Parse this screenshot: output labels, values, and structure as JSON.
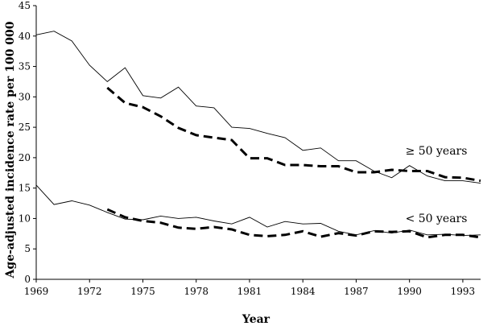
{
  "chart_data": {
    "type": "line",
    "title": "",
    "xlabel": "Year",
    "ylabel": "Age-adjusted incidence rate per 100 000",
    "xlim": [
      1969,
      1994
    ],
    "ylim": [
      0,
      45
    ],
    "x_ticks": [
      1969,
      1972,
      1975,
      1978,
      1981,
      1984,
      1987,
      1990,
      1993
    ],
    "y_ticks": [
      0,
      5,
      10,
      15,
      20,
      25,
      30,
      35,
      40,
      45
    ],
    "grid": false,
    "legend": "none",
    "annotations": [
      {
        "text": "≥ 50 years",
        "group": "older"
      },
      {
        "text": "< 50 years",
        "group": "younger"
      }
    ],
    "series": [
      {
        "group": "older",
        "style": "solid",
        "points": [
          [
            1969,
            40.2
          ],
          [
            1970,
            40.8
          ],
          [
            1971,
            39.2
          ],
          [
            1972,
            35.2
          ],
          [
            1973,
            32.5
          ],
          [
            1974,
            34.8
          ],
          [
            1975,
            30.2
          ],
          [
            1976,
            29.8
          ],
          [
            1977,
            31.6
          ],
          [
            1978,
            28.5
          ],
          [
            1979,
            28.2
          ],
          [
            1980,
            25.0
          ],
          [
            1981,
            24.8
          ],
          [
            1982,
            24.0
          ],
          [
            1983,
            23.3
          ],
          [
            1984,
            21.2
          ],
          [
            1985,
            21.6
          ],
          [
            1986,
            19.5
          ],
          [
            1987,
            19.5
          ],
          [
            1988,
            17.8
          ],
          [
            1989,
            16.7
          ],
          [
            1990,
            18.7
          ],
          [
            1991,
            17.0
          ],
          [
            1992,
            16.2
          ],
          [
            1993,
            16.2
          ],
          [
            1994,
            15.8
          ]
        ]
      },
      {
        "group": "older",
        "style": "dashed",
        "points": [
          [
            1973,
            31.5
          ],
          [
            1974,
            29.0
          ],
          [
            1975,
            28.3
          ],
          [
            1976,
            26.8
          ],
          [
            1977,
            24.9
          ],
          [
            1978,
            23.7
          ],
          [
            1979,
            23.3
          ],
          [
            1980,
            22.9
          ],
          [
            1981,
            19.9
          ],
          [
            1982,
            19.9
          ],
          [
            1983,
            18.8
          ],
          [
            1984,
            18.8
          ],
          [
            1985,
            18.6
          ],
          [
            1986,
            18.6
          ],
          [
            1987,
            17.6
          ],
          [
            1988,
            17.6
          ],
          [
            1989,
            18.0
          ],
          [
            1990,
            17.8
          ],
          [
            1991,
            17.8
          ],
          [
            1992,
            16.8
          ],
          [
            1993,
            16.7
          ],
          [
            1994,
            16.2
          ]
        ]
      },
      {
        "group": "younger",
        "style": "solid",
        "points": [
          [
            1969,
            15.5
          ],
          [
            1970,
            12.3
          ],
          [
            1971,
            12.9
          ],
          [
            1972,
            12.2
          ],
          [
            1973,
            11.0
          ],
          [
            1974,
            9.9
          ],
          [
            1975,
            9.8
          ],
          [
            1976,
            10.4
          ],
          [
            1977,
            10.0
          ],
          [
            1978,
            10.2
          ],
          [
            1979,
            9.6
          ],
          [
            1980,
            9.1
          ],
          [
            1981,
            10.2
          ],
          [
            1982,
            8.6
          ],
          [
            1983,
            9.5
          ],
          [
            1984,
            9.1
          ],
          [
            1985,
            9.2
          ],
          [
            1986,
            7.9
          ],
          [
            1987,
            7.3
          ],
          [
            1988,
            8.0
          ],
          [
            1989,
            7.6
          ],
          [
            1990,
            8.1
          ],
          [
            1991,
            7.3
          ],
          [
            1992,
            7.4
          ],
          [
            1993,
            7.2
          ],
          [
            1994,
            7.3
          ]
        ]
      },
      {
        "group": "younger",
        "style": "dashed",
        "points": [
          [
            1973,
            11.5
          ],
          [
            1974,
            10.2
          ],
          [
            1975,
            9.6
          ],
          [
            1976,
            9.3
          ],
          [
            1977,
            8.5
          ],
          [
            1978,
            8.3
          ],
          [
            1979,
            8.6
          ],
          [
            1980,
            8.2
          ],
          [
            1981,
            7.3
          ],
          [
            1982,
            7.1
          ],
          [
            1983,
            7.3
          ],
          [
            1984,
            7.9
          ],
          [
            1985,
            7.0
          ],
          [
            1986,
            7.6
          ],
          [
            1987,
            7.2
          ],
          [
            1988,
            7.9
          ],
          [
            1989,
            7.8
          ],
          [
            1990,
            7.9
          ],
          [
            1991,
            6.9
          ],
          [
            1992,
            7.3
          ],
          [
            1993,
            7.3
          ],
          [
            1994,
            6.9
          ]
        ]
      }
    ]
  }
}
